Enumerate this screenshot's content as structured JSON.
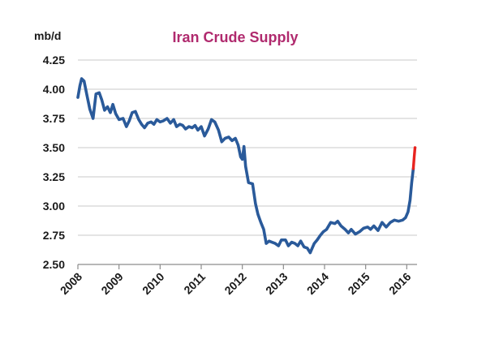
{
  "chart_data": {
    "type": "line",
    "title": "Iran Crude Supply",
    "ylabel": "mb/d",
    "xlabel": "",
    "ylim": [
      2.5,
      4.25
    ],
    "xlim": [
      2008.0,
      2016.25
    ],
    "yticks": [
      "2.50",
      "2.75",
      "3.00",
      "3.25",
      "3.50",
      "3.75",
      "4.00",
      "4.25"
    ],
    "xticks": [
      "2008",
      "2009",
      "2010",
      "2011",
      "2012",
      "2013",
      "2014",
      "2015",
      "2016"
    ],
    "grid": true,
    "colors": {
      "title": "#b02a6e",
      "series": "#2a5a9a",
      "projection": "#e8231f"
    },
    "series": [
      {
        "values": [
          [
            2008.0,
            3.93
          ],
          [
            2008.05,
            4.03
          ],
          [
            2008.09,
            4.09
          ],
          [
            2008.15,
            4.07
          ],
          [
            2008.22,
            3.95
          ],
          [
            2008.29,
            3.83
          ],
          [
            2008.37,
            3.75
          ],
          [
            2008.44,
            3.96
          ],
          [
            2008.52,
            3.97
          ],
          [
            2008.58,
            3.91
          ],
          [
            2008.65,
            3.82
          ],
          [
            2008.72,
            3.85
          ],
          [
            2008.79,
            3.8
          ],
          [
            2008.85,
            3.87
          ],
          [
            2008.92,
            3.79
          ],
          [
            2009.0,
            3.74
          ],
          [
            2009.1,
            3.75
          ],
          [
            2009.18,
            3.68
          ],
          [
            2009.25,
            3.73
          ],
          [
            2009.32,
            3.8
          ],
          [
            2009.4,
            3.81
          ],
          [
            2009.48,
            3.74
          ],
          [
            2009.55,
            3.7
          ],
          [
            2009.62,
            3.67
          ],
          [
            2009.7,
            3.71
          ],
          [
            2009.78,
            3.72
          ],
          [
            2009.85,
            3.7
          ],
          [
            2009.92,
            3.74
          ],
          [
            2010.0,
            3.72
          ],
          [
            2010.08,
            3.73
          ],
          [
            2010.17,
            3.75
          ],
          [
            2010.25,
            3.71
          ],
          [
            2010.33,
            3.74
          ],
          [
            2010.4,
            3.68
          ],
          [
            2010.48,
            3.7
          ],
          [
            2010.55,
            3.69
          ],
          [
            2010.62,
            3.66
          ],
          [
            2010.7,
            3.68
          ],
          [
            2010.78,
            3.67
          ],
          [
            2010.85,
            3.69
          ],
          [
            2010.92,
            3.65
          ],
          [
            2011.0,
            3.68
          ],
          [
            2011.08,
            3.6
          ],
          [
            2011.17,
            3.66
          ],
          [
            2011.25,
            3.74
          ],
          [
            2011.33,
            3.72
          ],
          [
            2011.42,
            3.65
          ],
          [
            2011.5,
            3.55
          ],
          [
            2011.58,
            3.58
          ],
          [
            2011.67,
            3.59
          ],
          [
            2011.75,
            3.56
          ],
          [
            2011.83,
            3.58
          ],
          [
            2011.9,
            3.52
          ],
          [
            2011.96,
            3.42
          ],
          [
            2012.0,
            3.4
          ],
          [
            2012.04,
            3.51
          ],
          [
            2012.08,
            3.34
          ],
          [
            2012.15,
            3.2
          ],
          [
            2012.25,
            3.19
          ],
          [
            2012.32,
            3.02
          ],
          [
            2012.38,
            2.93
          ],
          [
            2012.45,
            2.86
          ],
          [
            2012.52,
            2.8
          ],
          [
            2012.58,
            2.68
          ],
          [
            2012.65,
            2.7
          ],
          [
            2012.72,
            2.69
          ],
          [
            2012.8,
            2.68
          ],
          [
            2012.88,
            2.66
          ],
          [
            2012.95,
            2.71
          ],
          [
            2013.05,
            2.71
          ],
          [
            2013.12,
            2.66
          ],
          [
            2013.2,
            2.69
          ],
          [
            2013.28,
            2.68
          ],
          [
            2013.35,
            2.66
          ],
          [
            2013.42,
            2.7
          ],
          [
            2013.5,
            2.65
          ],
          [
            2013.58,
            2.64
          ],
          [
            2013.65,
            2.6
          ],
          [
            2013.7,
            2.64
          ],
          [
            2013.75,
            2.68
          ],
          [
            2013.82,
            2.71
          ],
          [
            2013.9,
            2.75
          ],
          [
            2013.97,
            2.78
          ],
          [
            2014.05,
            2.8
          ],
          [
            2014.15,
            2.86
          ],
          [
            2014.25,
            2.85
          ],
          [
            2014.32,
            2.87
          ],
          [
            2014.4,
            2.83
          ],
          [
            2014.5,
            2.8
          ],
          [
            2014.58,
            2.77
          ],
          [
            2014.65,
            2.8
          ],
          [
            2014.75,
            2.76
          ],
          [
            2014.85,
            2.78
          ],
          [
            2014.95,
            2.81
          ],
          [
            2015.05,
            2.82
          ],
          [
            2015.12,
            2.8
          ],
          [
            2015.2,
            2.83
          ],
          [
            2015.3,
            2.79
          ],
          [
            2015.4,
            2.86
          ],
          [
            2015.5,
            2.82
          ],
          [
            2015.6,
            2.86
          ],
          [
            2015.7,
            2.88
          ],
          [
            2015.8,
            2.87
          ],
          [
            2015.9,
            2.88
          ],
          [
            2015.97,
            2.9
          ],
          [
            2016.03,
            2.95
          ],
          [
            2016.08,
            3.05
          ],
          [
            2016.12,
            3.2
          ],
          [
            2016.16,
            3.32
          ]
        ]
      },
      {
        "values": [
          [
            2016.16,
            3.32
          ],
          [
            2016.18,
            3.42
          ],
          [
            2016.2,
            3.5
          ]
        ]
      }
    ]
  }
}
